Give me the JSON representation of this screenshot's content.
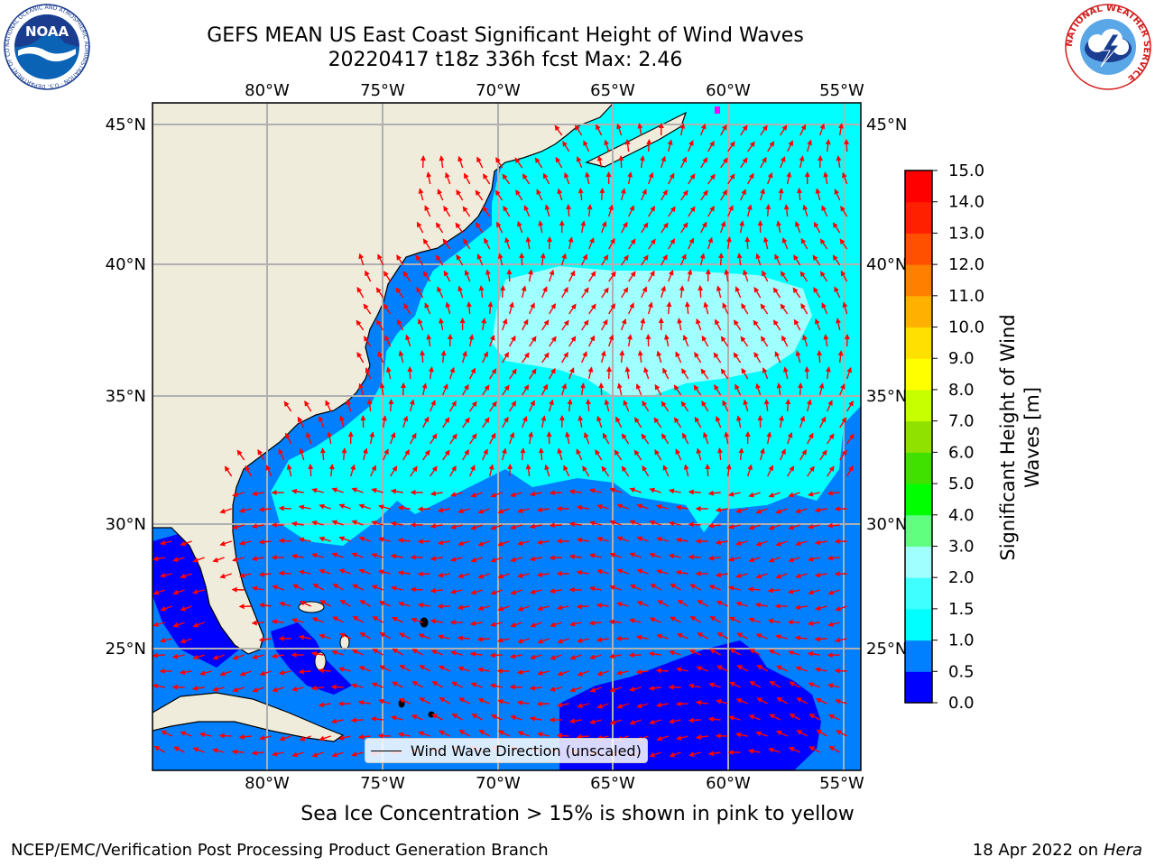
{
  "title": {
    "line1": "GEFS MEAN US East Coast Significant Height of Wind Waves",
    "line2": "20220417 t18z 336h fcst   Max: 2.46"
  },
  "map": {
    "lon_ticks": [
      "80°W",
      "75°W",
      "70°W",
      "65°W",
      "60°W",
      "55°W"
    ],
    "lat_ticks": [
      "45°N",
      "40°N",
      "35°N",
      "30°N",
      "25°N"
    ],
    "lon_range": [
      -85,
      -54.3
    ],
    "lat_range": [
      20.5,
      45.8
    ],
    "legend_label": "Wind Wave Direction (unscaled)",
    "arrow_color": "#ff0000",
    "land_color": "#efecdb"
  },
  "colorbar": {
    "label": "Significant Height of Wind Waves [m]",
    "label_line1": "Significant Height of Wind",
    "label_line2": "Waves [m]",
    "ticks": [
      "0.0",
      "0.5",
      "1.0",
      "1.5",
      "2.0",
      "3.0",
      "4.0",
      "5.0",
      "6.0",
      "7.0",
      "8.0",
      "9.0",
      "10.0",
      "11.0",
      "12.0",
      "13.0",
      "14.0",
      "15.0"
    ],
    "colors": [
      "#0000ff",
      "#0080ff",
      "#00ffff",
      "#40ffff",
      "#a0ffff",
      "#60ff80",
      "#00ff00",
      "#40e000",
      "#90e000",
      "#c8ff00",
      "#ffff00",
      "#ffe000",
      "#ffb000",
      "#ff8000",
      "#ff5000",
      "#ff2000",
      "#ff0000"
    ]
  },
  "caption": "Sea Ice Concentration > 15% is shown in pink to yellow",
  "footer": {
    "left": "NCEP/EMC/Verification Post Processing Product Generation Branch",
    "right_date": "18 Apr 2022 on",
    "right_host": "Hera"
  },
  "logos": {
    "noaa_text": "NOAA",
    "noaa_ring": "NATIONAL OCEANIC AND ATMOSPHERIC ADMINISTRATION · U.S. DEPARTMENT OF COMMERCE",
    "nws_ring": "NATIONAL WEATHER SERVICE"
  }
}
